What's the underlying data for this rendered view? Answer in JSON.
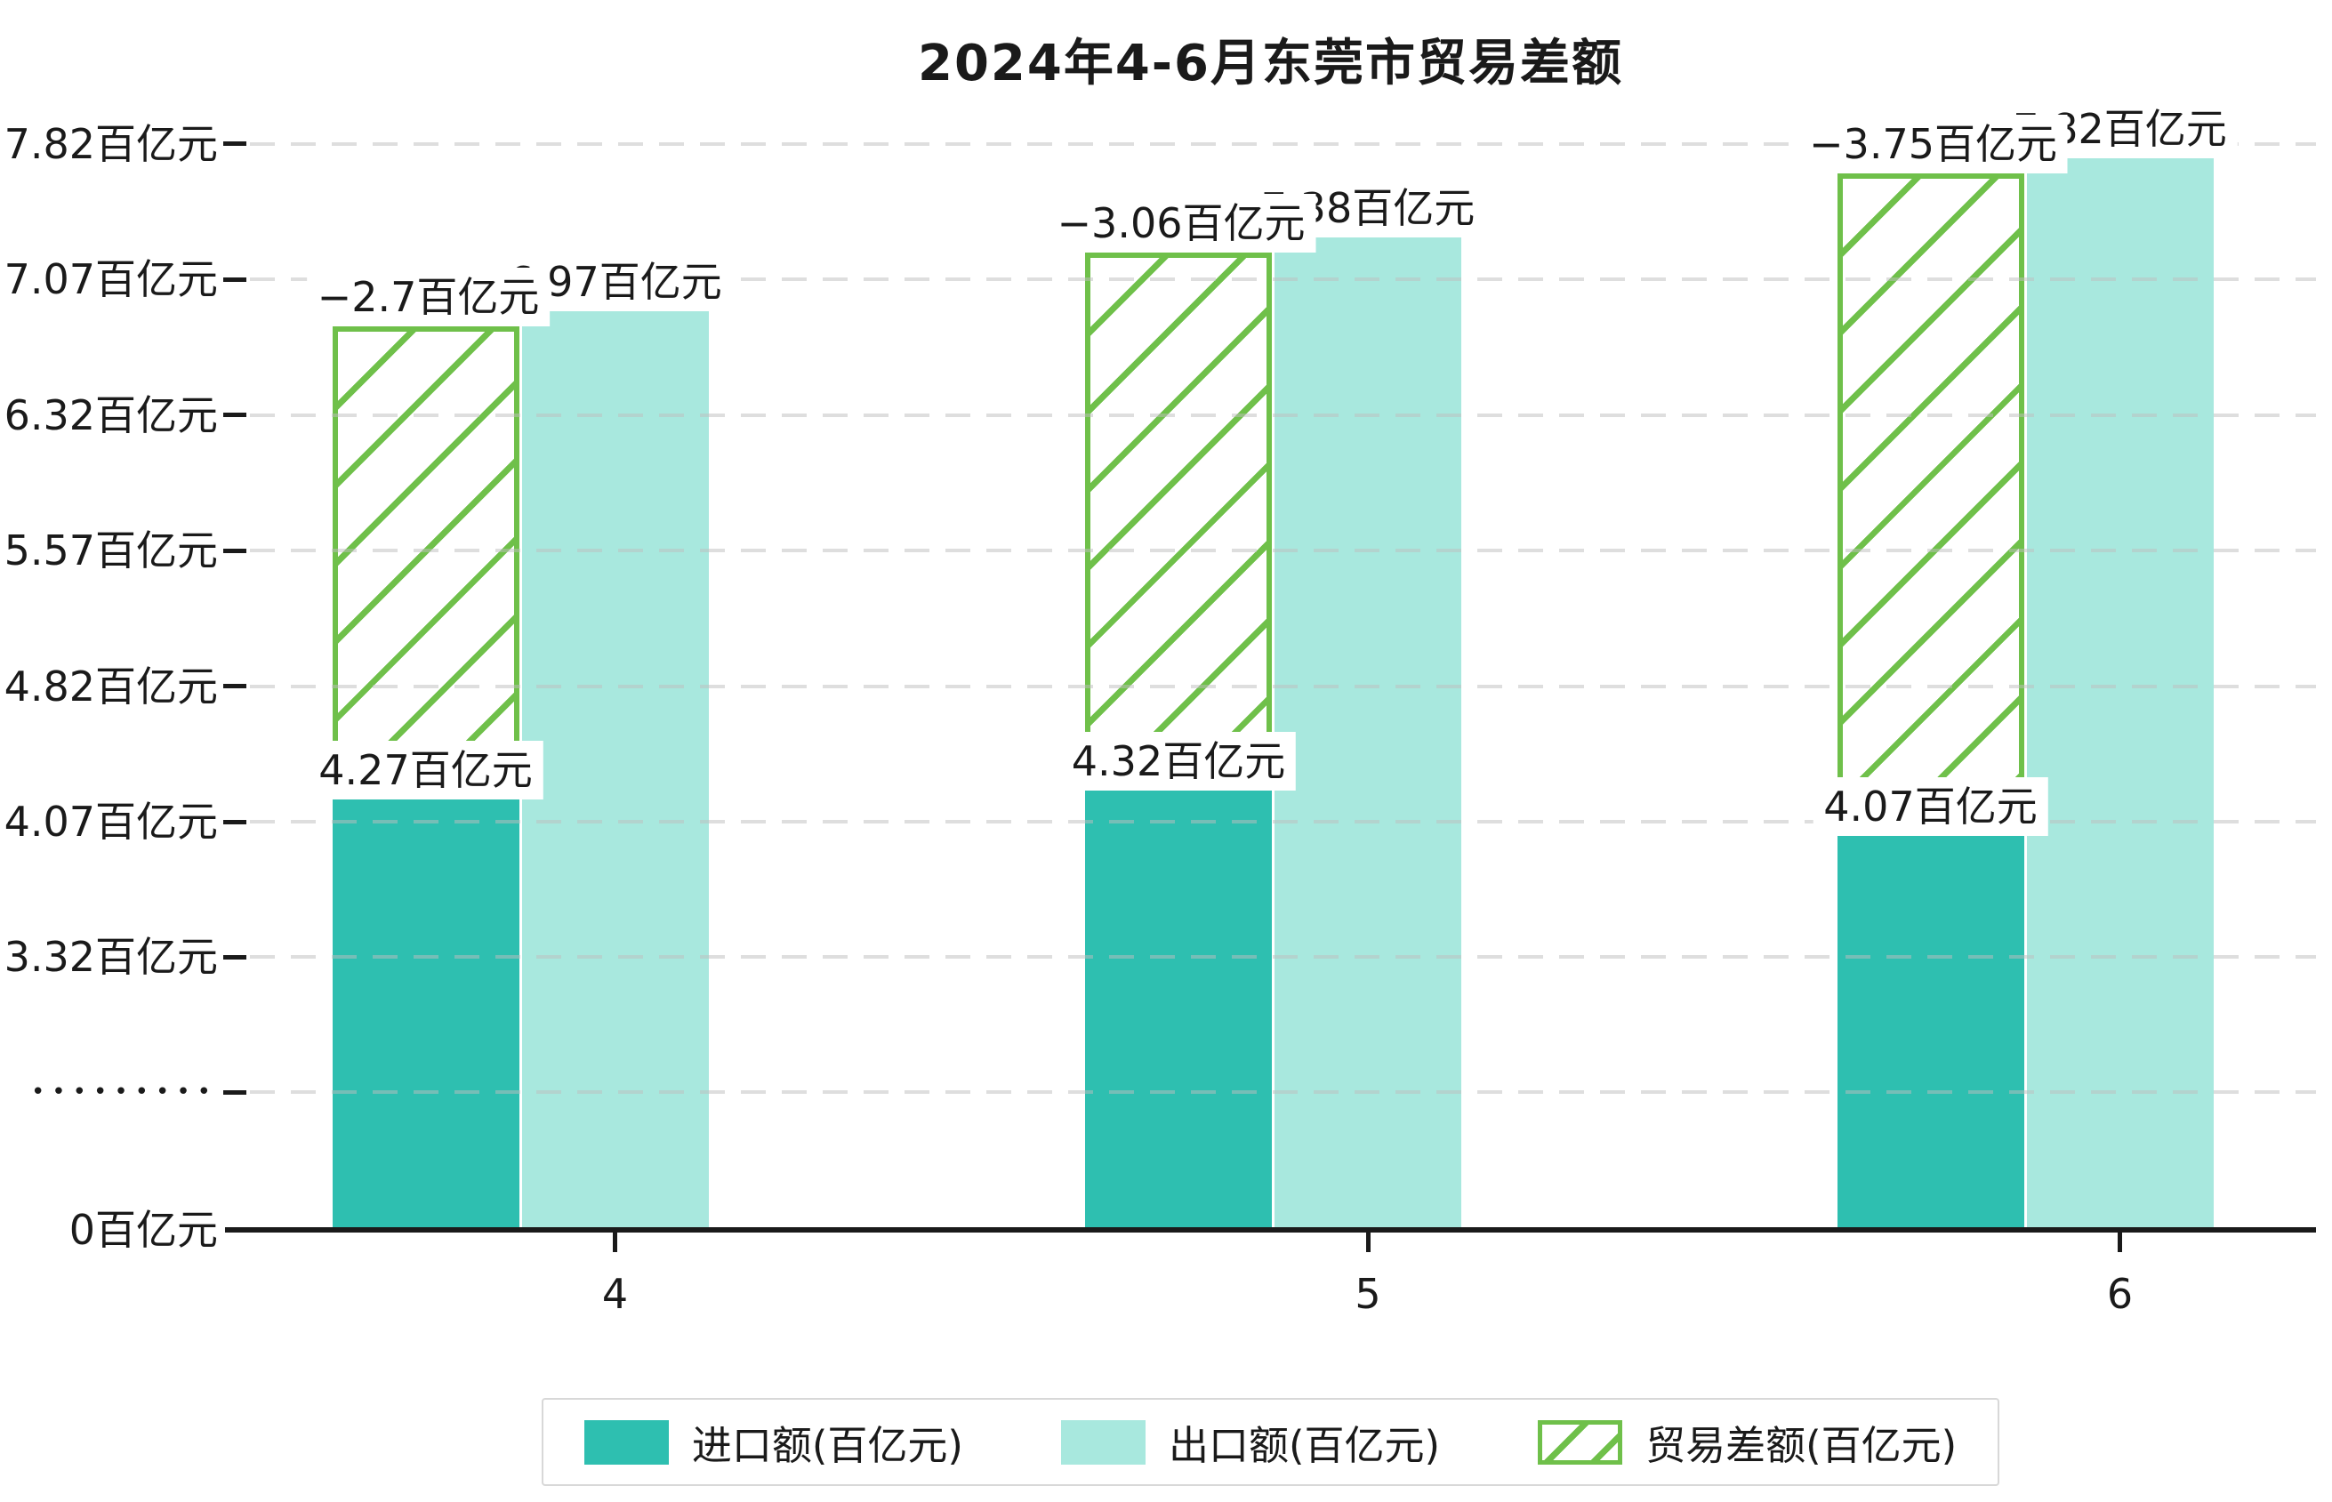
{
  "title": "2024年4-6月东莞市贸易差额",
  "colors": {
    "import": "#2ebfb0",
    "export": "#a8e8de",
    "balance": "#6fc04a",
    "gridline": "#e9e9e9",
    "axis": "#1a1a1a",
    "label_background": "#ffffff"
  },
  "chart_data": {
    "type": "bar",
    "title": "2024年4-6月东莞市贸易差额",
    "categories": [
      "4",
      "5",
      "6"
    ],
    "series": [
      {
        "name": "进口额(百亿元)",
        "role": "import",
        "values": [
          4.27,
          4.32,
          4.07
        ],
        "labels": [
          "4.27百亿元",
          "4.32百亿元",
          "4.07百亿元"
        ],
        "color": "#2ebfb0",
        "style": "solid"
      },
      {
        "name": "出口额(百亿元)",
        "role": "export",
        "values": [
          6.97,
          7.38,
          7.82
        ],
        "labels": [
          "6.97百亿元",
          "7.38百亿元",
          "7.82百亿元"
        ],
        "color": "#a8e8de",
        "style": "solid"
      },
      {
        "name": "贸易差额(百亿元)",
        "role": "balance",
        "values": [
          -2.7,
          -3.06,
          -3.75
        ],
        "labels": [
          "−2.7百亿元",
          "−3.06百亿元",
          "−3.75百亿元"
        ],
        "color": "#6fc04a",
        "style": "hatched",
        "note": "hatched bar spans from import value up to export value"
      }
    ],
    "y_axis": {
      "unit": "百亿元",
      "tick_values": [
        7.82,
        7.07,
        6.32,
        5.57,
        4.82,
        4.07,
        3.32
      ],
      "tick_labels": [
        "7.82百亿元",
        "7.07百亿元",
        "6.32百亿元",
        "5.57百亿元",
        "4.82百亿元",
        "4.07百亿元",
        "3.32百亿元"
      ],
      "break_dots_label": "•••••••••",
      "zero_label": "0百亿元",
      "has_axis_break": true,
      "grid": "dashed"
    },
    "x_axis": {
      "tick_labels": [
        "4",
        "5",
        "6"
      ]
    },
    "legend": {
      "position": "bottom-center",
      "entries": [
        "进口额(百亿元)",
        "出口额(百亿元)",
        "贸易差额(百亿元)"
      ]
    }
  }
}
